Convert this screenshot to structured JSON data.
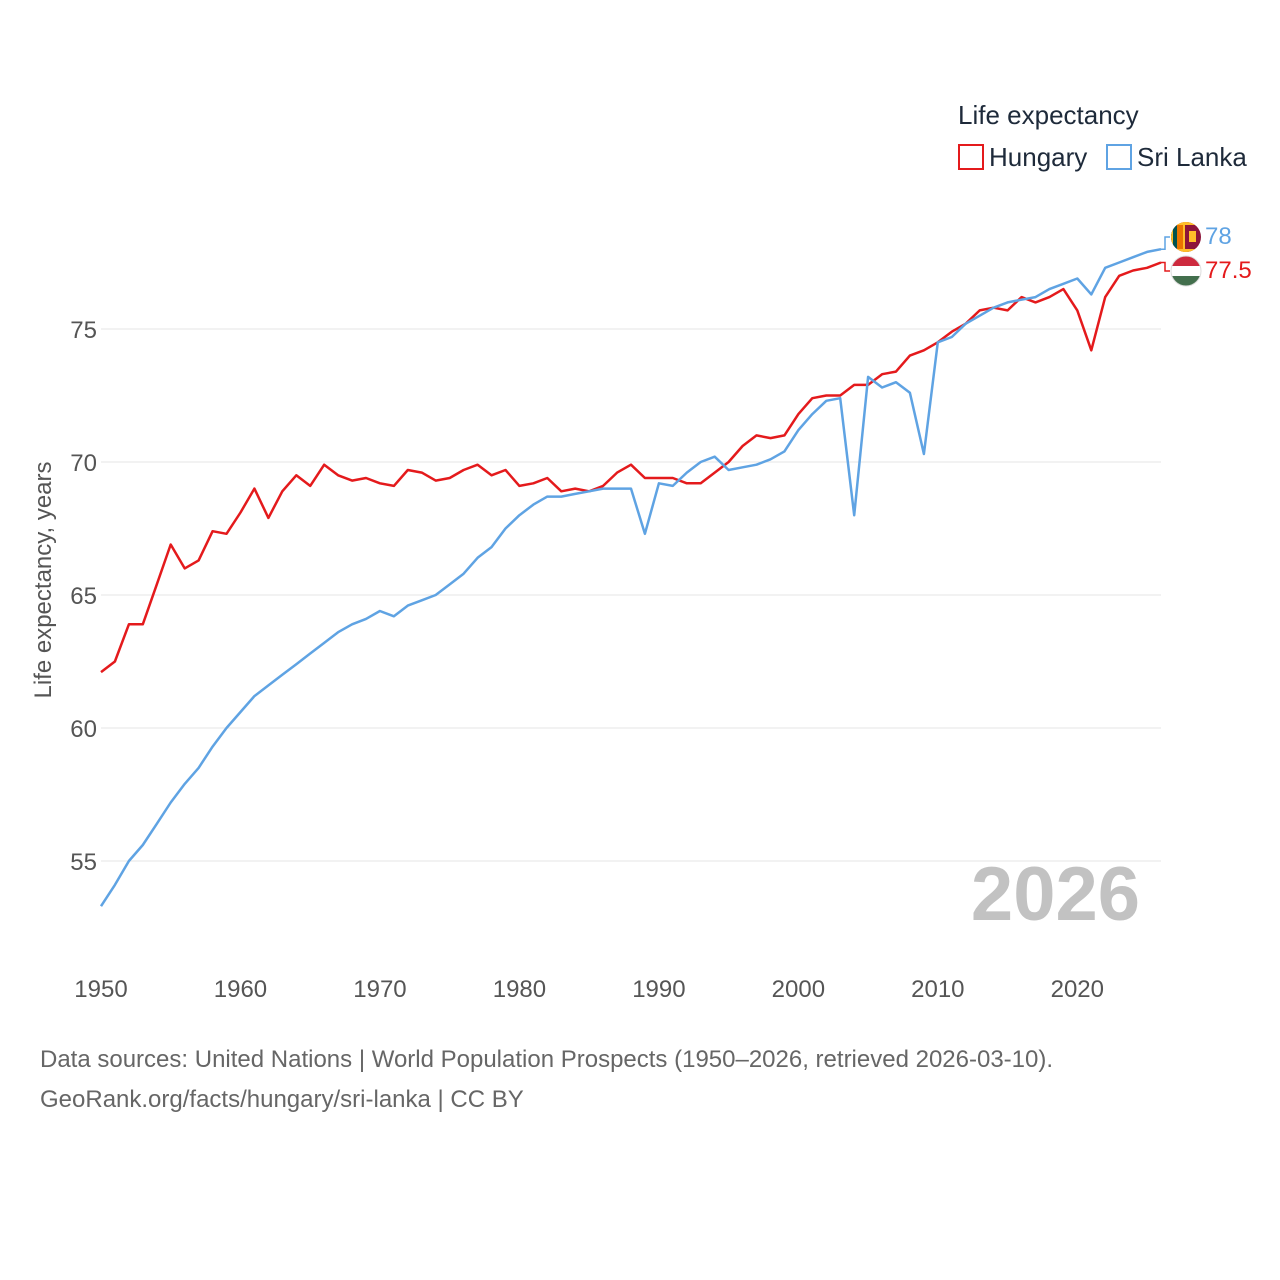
{
  "chart_data": {
    "type": "line",
    "legend_title": "Life expectancy",
    "ylabel": "Life expectancy, years",
    "xlim": [
      1950,
      2026
    ],
    "ylim": [
      52.5,
      80.5
    ],
    "y_ticks": [
      55,
      60,
      65,
      70,
      75
    ],
    "x_ticks": [
      1950,
      1960,
      1970,
      1980,
      1990,
      2000,
      2010,
      2020
    ],
    "current_year": "2026",
    "legend_position": "top-right",
    "grid": true,
    "series": [
      {
        "name": "Hungary",
        "color": "#e41a1c",
        "end_label": "77.5",
        "x": [
          1950,
          1951,
          1952,
          1953,
          1954,
          1955,
          1956,
          1957,
          1958,
          1959,
          1960,
          1961,
          1962,
          1963,
          1964,
          1965,
          1966,
          1967,
          1968,
          1969,
          1970,
          1971,
          1972,
          1973,
          1974,
          1975,
          1976,
          1977,
          1978,
          1979,
          1980,
          1981,
          1982,
          1983,
          1984,
          1985,
          1986,
          1987,
          1988,
          1989,
          1990,
          1991,
          1992,
          1993,
          1994,
          1995,
          1996,
          1997,
          1998,
          1999,
          2000,
          2001,
          2002,
          2003,
          2004,
          2005,
          2006,
          2007,
          2008,
          2009,
          2010,
          2011,
          2012,
          2013,
          2014,
          2015,
          2016,
          2017,
          2018,
          2019,
          2020,
          2021,
          2022,
          2023,
          2024,
          2025,
          2026
        ],
        "values": [
          62.1,
          62.5,
          63.9,
          63.9,
          65.4,
          66.9,
          66.0,
          66.3,
          67.4,
          67.3,
          68.1,
          69.0,
          67.9,
          68.9,
          69.5,
          69.1,
          69.9,
          69.5,
          69.3,
          69.4,
          69.2,
          69.1,
          69.7,
          69.6,
          69.3,
          69.4,
          69.7,
          69.9,
          69.5,
          69.7,
          69.1,
          69.2,
          69.4,
          68.9,
          69.0,
          68.9,
          69.1,
          69.6,
          69.9,
          69.4,
          69.4,
          69.4,
          69.2,
          69.2,
          69.6,
          70.0,
          70.6,
          71.0,
          70.9,
          71.0,
          71.8,
          72.4,
          72.5,
          72.5,
          72.9,
          72.9,
          73.3,
          73.4,
          74.0,
          74.2,
          74.5,
          74.9,
          75.2,
          75.7,
          75.8,
          75.7,
          76.2,
          76.0,
          76.2,
          76.5,
          75.7,
          74.2,
          76.2,
          77.0,
          77.2,
          77.3,
          77.5
        ]
      },
      {
        "name": "Sri Lanka",
        "color": "#5fa3e3",
        "end_label": "78",
        "x": [
          1950,
          1951,
          1952,
          1953,
          1954,
          1955,
          1956,
          1957,
          1958,
          1959,
          1960,
          1961,
          1962,
          1963,
          1964,
          1965,
          1966,
          1967,
          1968,
          1969,
          1970,
          1971,
          1972,
          1973,
          1974,
          1975,
          1976,
          1977,
          1978,
          1979,
          1980,
          1981,
          1982,
          1983,
          1984,
          1985,
          1986,
          1987,
          1988,
          1989,
          1990,
          1991,
          1992,
          1993,
          1994,
          1995,
          1996,
          1997,
          1998,
          1999,
          2000,
          2001,
          2002,
          2003,
          2004,
          2005,
          2006,
          2007,
          2008,
          2009,
          2010,
          2011,
          2012,
          2013,
          2014,
          2015,
          2016,
          2017,
          2018,
          2019,
          2020,
          2021,
          2022,
          2023,
          2024,
          2025,
          2026
        ],
        "values": [
          53.3,
          54.1,
          55.0,
          55.6,
          56.4,
          57.2,
          57.9,
          58.5,
          59.3,
          60.0,
          60.6,
          61.2,
          61.6,
          62.0,
          62.4,
          62.8,
          63.2,
          63.6,
          63.9,
          64.1,
          64.4,
          64.2,
          64.6,
          64.8,
          65.0,
          65.4,
          65.8,
          66.4,
          66.8,
          67.5,
          68.0,
          68.4,
          68.7,
          68.7,
          68.8,
          68.9,
          69.0,
          69.0,
          69.0,
          67.3,
          69.2,
          69.1,
          69.6,
          70.0,
          70.2,
          69.7,
          69.8,
          69.9,
          70.1,
          70.4,
          71.2,
          71.8,
          72.3,
          72.4,
          68.0,
          73.2,
          72.8,
          73.0,
          72.6,
          70.3,
          74.5,
          74.7,
          75.2,
          75.5,
          75.8,
          76.0,
          76.1,
          76.2,
          76.5,
          76.7,
          76.9,
          76.3,
          77.3,
          77.5,
          77.7,
          77.9,
          78.0
        ]
      }
    ]
  },
  "footer": {
    "line1": "Data sources: United Nations | World Population Prospects (1950–2026, retrieved 2026-03-10).",
    "line2": "GeoRank.org/facts/hungary/sri-lanka | CC BY"
  },
  "icons": {
    "hungary_flag": "hungary-flag-icon",
    "sri_lanka_flag": "sri-lanka-flag-icon"
  }
}
